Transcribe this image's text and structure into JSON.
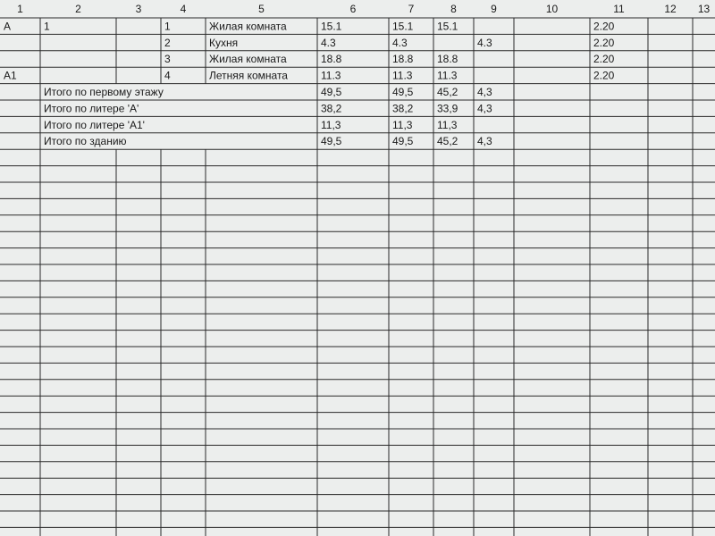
{
  "header": {
    "columns": [
      "1",
      "2",
      "3",
      "4",
      "5",
      "6",
      "7",
      "8",
      "9",
      "10",
      "11",
      "12",
      "13"
    ]
  },
  "table": {
    "rows": [
      {
        "cells": {
          "1": "А",
          "2": "1",
          "4": "1",
          "5": "Жилая комната",
          "6": "15.1",
          "7": "15.1",
          "8": "15.1",
          "11": "2.20"
        }
      },
      {
        "cells": {
          "4": "2",
          "5": "Кухня",
          "6": "4.3",
          "7": "4.3",
          "9": "4.3",
          "11": "2.20"
        }
      },
      {
        "cells": {
          "4": "3",
          "5": "Жилая комната",
          "6": "18.8",
          "7": "18.8",
          "8": "18.8",
          "11": "2.20"
        }
      },
      {
        "cells": {
          "1": "А1",
          "4": "4",
          "5": "Летняя комната",
          "6": "11.3",
          "7": "11.3",
          "8": "11.3",
          "11": "2.20"
        }
      }
    ],
    "totals": [
      {
        "label": "Итого по первому этажу",
        "cells": {
          "6": "49,5",
          "7": "49,5",
          "8": "45,2",
          "9": "4,3"
        }
      },
      {
        "label": "Итого по литере 'А'",
        "cells": {
          "6": "38,2",
          "7": "38,2",
          "8": "33,9",
          "9": "4,3"
        }
      },
      {
        "label": "Итого по литере 'А1'",
        "cells": {
          "6": "11,3",
          "7": "11,3",
          "8": "11,3"
        }
      },
      {
        "label": "Итого по зданию",
        "cells": {
          "6": "49,5",
          "7": "49,5",
          "8": "45,2",
          "9": "4,3"
        }
      }
    ]
  }
}
